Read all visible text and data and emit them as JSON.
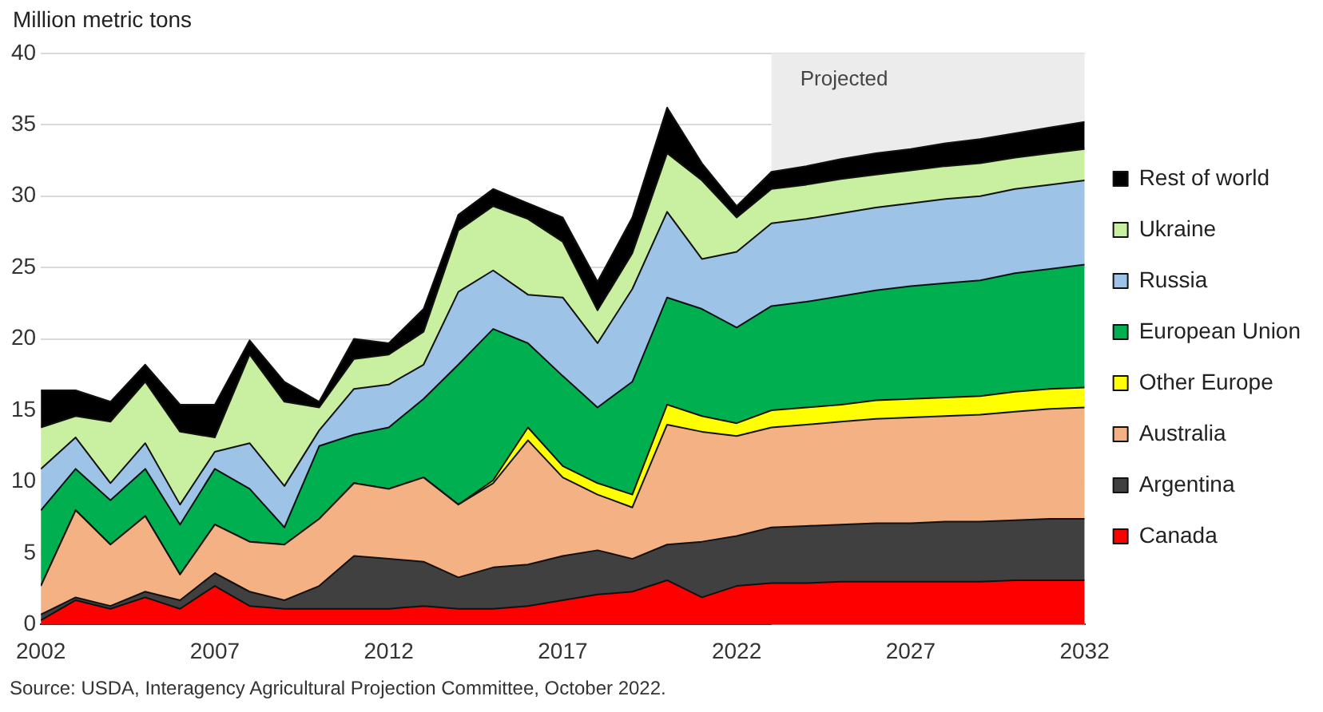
{
  "chart_data": {
    "type": "area",
    "stacked": true,
    "ylabel": "Million metric tons",
    "x": [
      2002,
      2003,
      2004,
      2005,
      2006,
      2007,
      2008,
      2009,
      2010,
      2011,
      2012,
      2013,
      2014,
      2015,
      2016,
      2017,
      2018,
      2019,
      2020,
      2021,
      2022,
      2023,
      2024,
      2025,
      2026,
      2027,
      2028,
      2029,
      2030,
      2031,
      2032
    ],
    "xlim": [
      2002,
      2032
    ],
    "xticks": [
      2002,
      2007,
      2012,
      2017,
      2022,
      2027,
      2032
    ],
    "ylim": [
      0,
      40
    ],
    "yticks": [
      0,
      5,
      10,
      15,
      20,
      25,
      30,
      35,
      40
    ],
    "grid": "y",
    "legend": "right",
    "series": [
      {
        "name": "Canada",
        "color": "#ff0000",
        "values": [
          0.3,
          1.7,
          1.1,
          1.9,
          1.1,
          2.7,
          1.3,
          1.1,
          1.1,
          1.1,
          1.1,
          1.3,
          1.1,
          1.1,
          1.3,
          1.7,
          2.1,
          2.3,
          3.1,
          1.9,
          2.7,
          2.9,
          2.9,
          3.0,
          3.0,
          3.0,
          3.0,
          3.0,
          3.1,
          3.1,
          3.1
        ]
      },
      {
        "name": "Argentina",
        "color": "#404040",
        "values": [
          0.4,
          0.2,
          0.2,
          0.4,
          0.6,
          0.9,
          1.0,
          0.6,
          1.6,
          3.7,
          3.5,
          3.1,
          2.2,
          2.9,
          2.9,
          3.1,
          3.1,
          2.3,
          2.5,
          3.9,
          3.5,
          3.9,
          4.0,
          4.0,
          4.1,
          4.1,
          4.2,
          4.2,
          4.2,
          4.3,
          4.3
        ]
      },
      {
        "name": "Australia",
        "color": "#f4b183",
        "values": [
          2.0,
          6.1,
          4.3,
          5.3,
          1.8,
          3.4,
          3.5,
          3.9,
          4.7,
          5.1,
          4.9,
          5.9,
          5.1,
          5.9,
          8.7,
          5.5,
          3.9,
          3.6,
          8.4,
          7.7,
          7.0,
          7.0,
          7.1,
          7.2,
          7.3,
          7.4,
          7.4,
          7.5,
          7.6,
          7.7,
          7.8
        ]
      },
      {
        "name": "Other Europe",
        "color": "#ffff00",
        "values": [
          0,
          0,
          0,
          0,
          0,
          0,
          0,
          0,
          0,
          0,
          0,
          0,
          0,
          0.2,
          0.9,
          0.8,
          0.8,
          0.9,
          1.4,
          1.1,
          0.9,
          1.2,
          1.2,
          1.2,
          1.3,
          1.3,
          1.3,
          1.3,
          1.4,
          1.4,
          1.4
        ]
      },
      {
        "name": "European Union",
        "color": "#00b050",
        "values": [
          5.3,
          2.9,
          3.1,
          3.3,
          3.5,
          3.9,
          3.7,
          1.2,
          5.1,
          3.4,
          4.3,
          5.5,
          9.8,
          10.6,
          5.9,
          6.3,
          5.3,
          7.9,
          7.5,
          7.5,
          6.7,
          7.3,
          7.4,
          7.6,
          7.7,
          7.9,
          8.0,
          8.1,
          8.3,
          8.4,
          8.6
        ]
      },
      {
        "name": "Russia",
        "color": "#9dc3e6",
        "values": [
          2.9,
          2.2,
          1.2,
          1.8,
          1.4,
          1.2,
          3.2,
          2.9,
          1.1,
          3.2,
          3.0,
          2.4,
          5.1,
          4.1,
          3.4,
          5.5,
          4.5,
          6.5,
          6.0,
          3.5,
          5.3,
          5.8,
          5.8,
          5.8,
          5.8,
          5.8,
          5.9,
          5.9,
          5.9,
          5.9,
          5.9
        ]
      },
      {
        "name": "Ukraine",
        "color": "#c9f0a0",
        "values": [
          2.9,
          1.5,
          4.3,
          4.3,
          5.1,
          1.0,
          6.2,
          5.9,
          1.6,
          2.1,
          2.1,
          2.3,
          4.3,
          4.5,
          5.3,
          3.9,
          2.3,
          2.5,
          4.1,
          5.5,
          2.4,
          2.4,
          2.4,
          2.4,
          2.3,
          2.3,
          2.3,
          2.3,
          2.2,
          2.2,
          2.2
        ]
      },
      {
        "name": "Rest of world",
        "color": "#000000",
        "values": [
          2.6,
          1.8,
          1.4,
          1.2,
          1.9,
          2.3,
          1.0,
          1.4,
          0.4,
          1.4,
          0.8,
          1.6,
          1.1,
          1.2,
          1.1,
          1.7,
          2.0,
          2.5,
          3.2,
          1.2,
          0.8,
          1.2,
          1.3,
          1.4,
          1.5,
          1.5,
          1.6,
          1.7,
          1.7,
          1.8,
          1.9
        ]
      }
    ],
    "bands": [
      {
        "axis": "x",
        "from": 2023,
        "to": 2032,
        "label": "Projected",
        "color": "#ececec"
      }
    ],
    "annotations": [
      "Source: USDA,  Interagency Agricultural Projection Committee, October 2022."
    ]
  }
}
